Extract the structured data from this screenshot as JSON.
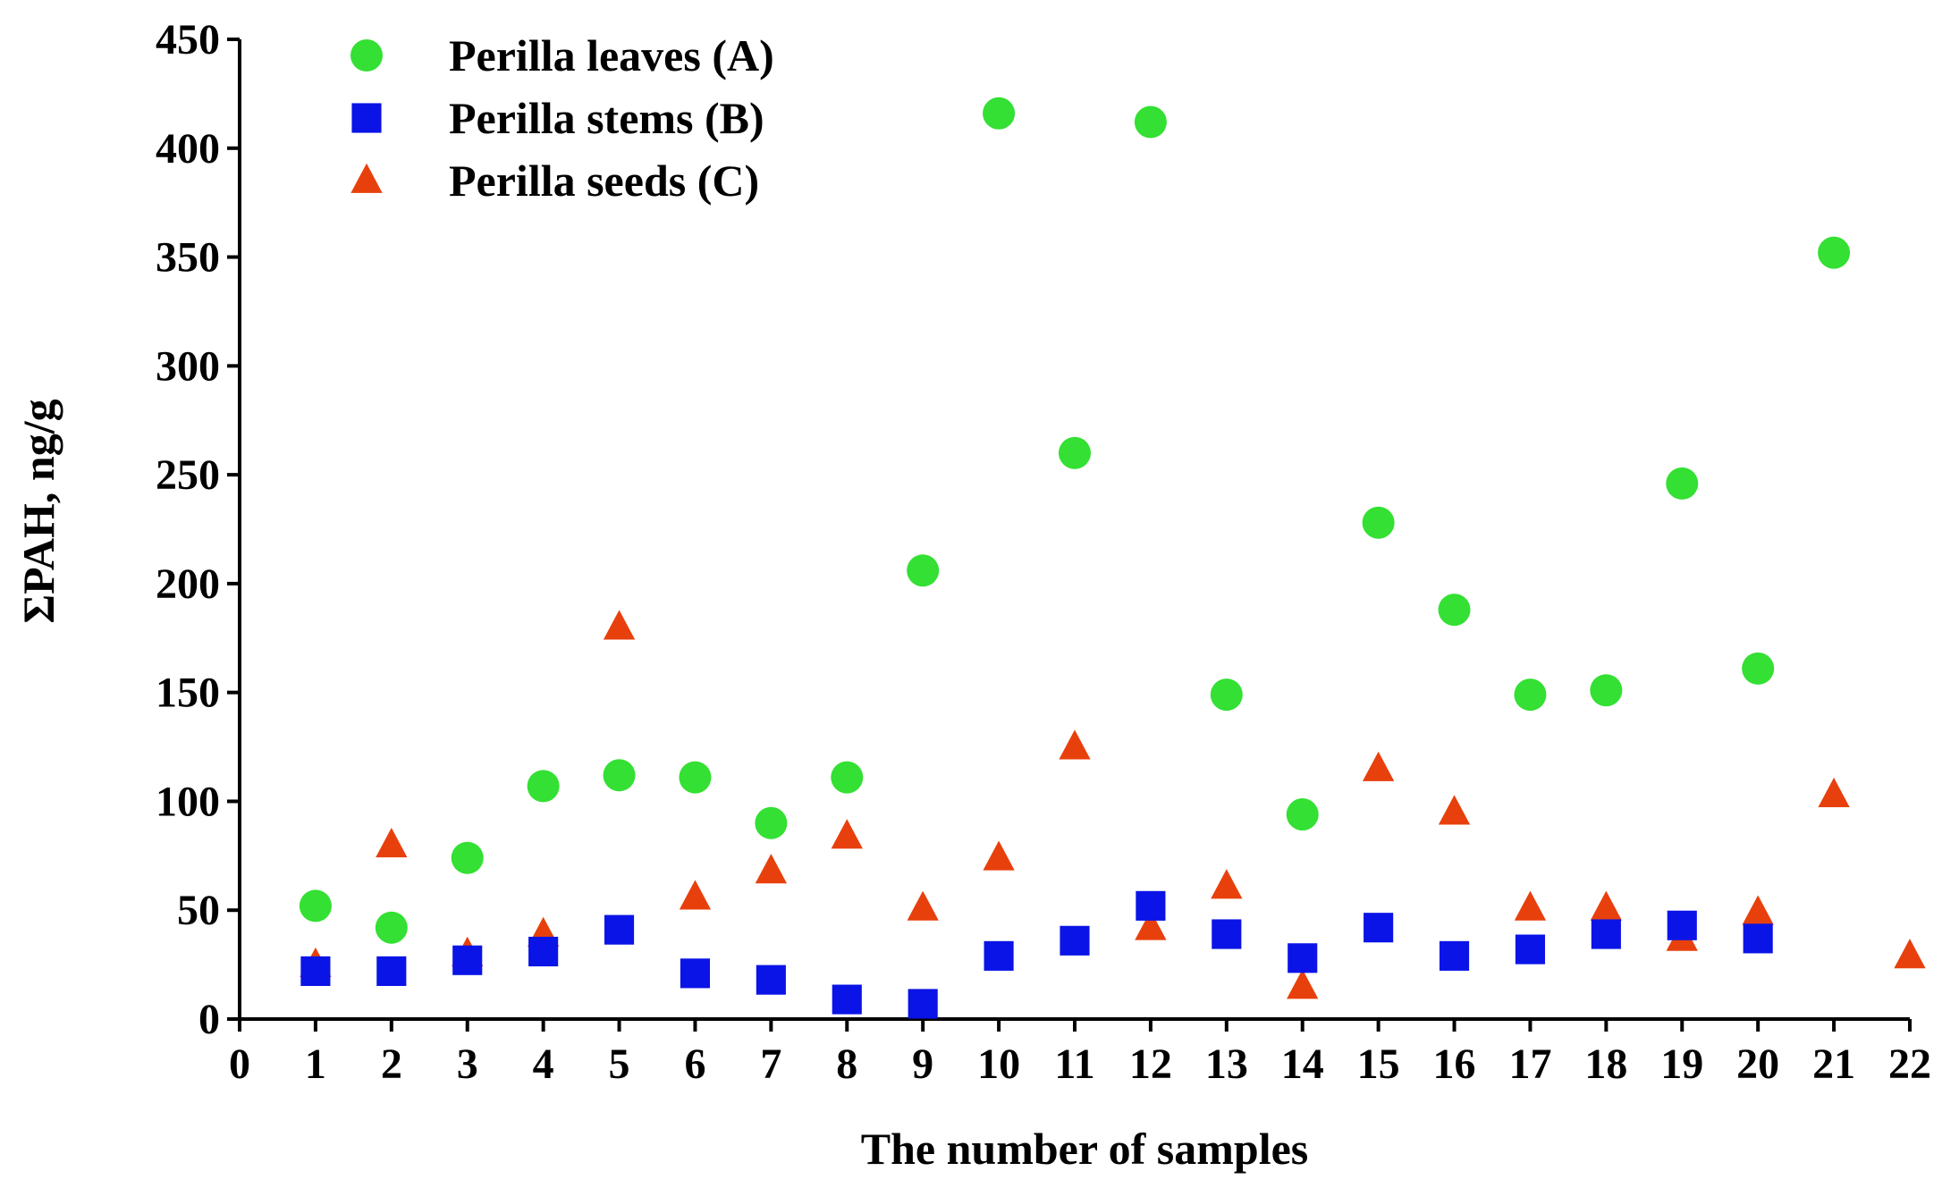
{
  "chart_data": {
    "type": "scatter",
    "title": "",
    "xlabel": "The number of samples",
    "ylabel": "ΣPAH, ng/g",
    "xlim": [
      0,
      22
    ],
    "ylim": [
      0,
      450
    ],
    "xticks": [
      0,
      1,
      2,
      3,
      4,
      5,
      6,
      7,
      8,
      9,
      10,
      11,
      12,
      13,
      14,
      15,
      16,
      17,
      18,
      19,
      20,
      21,
      22
    ],
    "yticks": [
      0,
      50,
      100,
      150,
      200,
      250,
      300,
      350,
      400,
      450
    ],
    "grid": false,
    "legend_position": "top-left",
    "series": [
      {
        "name": "Perilla leaves (A)",
        "marker": "circle",
        "color": "#33e033",
        "x": [
          1,
          2,
          3,
          4,
          5,
          6,
          7,
          8,
          9,
          10,
          11,
          12,
          13,
          14,
          15,
          16,
          17,
          18,
          19,
          20,
          21
        ],
        "values": [
          52,
          42,
          74,
          107,
          112,
          111,
          90,
          111,
          206,
          416,
          260,
          412,
          149,
          94,
          228,
          188,
          149,
          151,
          246,
          161,
          352
        ]
      },
      {
        "name": "Perilla stems (B)",
        "marker": "square",
        "color": "#0a14e6",
        "x": [
          1,
          2,
          3,
          4,
          5,
          6,
          7,
          8,
          9,
          10,
          11,
          12,
          13,
          14,
          15,
          16,
          17,
          18,
          19,
          20
        ],
        "values": [
          22,
          22,
          27,
          31,
          41,
          21,
          18,
          9,
          7,
          29,
          36,
          52,
          39,
          28,
          42,
          29,
          32,
          39,
          43,
          37
        ]
      },
      {
        "name": "Perilla seeds (C)",
        "marker": "triangle",
        "color": "#e8400c",
        "x": [
          1,
          2,
          3,
          4,
          5,
          6,
          7,
          8,
          9,
          10,
          11,
          12,
          13,
          14,
          15,
          16,
          17,
          18,
          19,
          20,
          21,
          22
        ],
        "values": [
          25,
          80,
          30,
          39,
          180,
          56,
          68,
          84,
          51,
          74,
          125,
          42,
          61,
          15,
          115,
          95,
          51,
          51,
          37,
          49,
          103,
          29
        ]
      }
    ]
  }
}
